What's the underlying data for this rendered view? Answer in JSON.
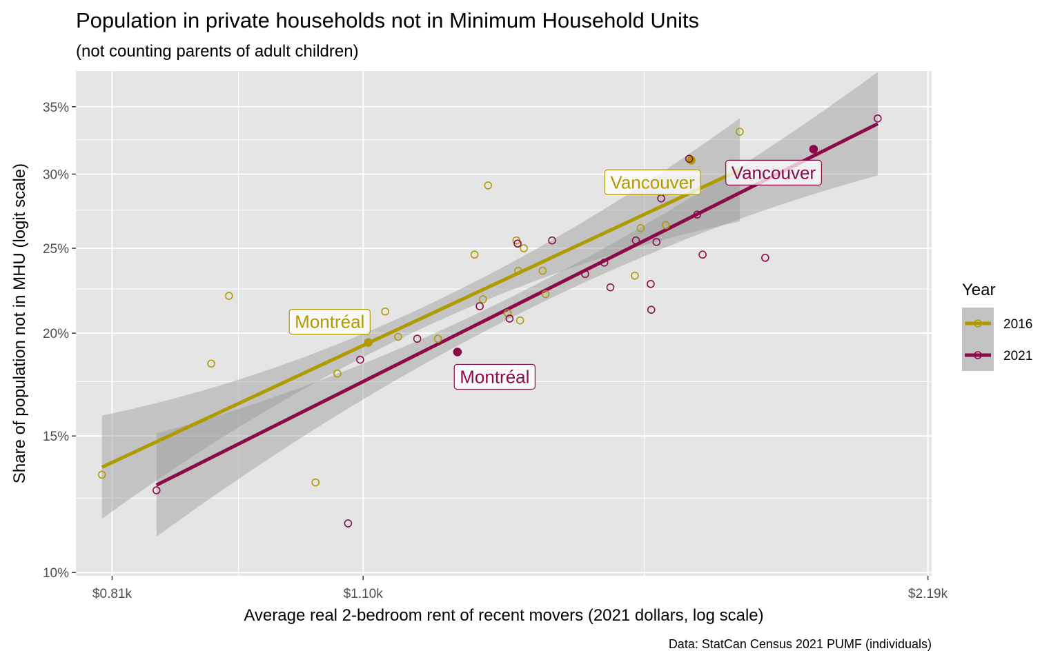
{
  "title": "Population in private households not in Minimum Household Units",
  "subtitle": "(not counting parents of adult children)",
  "caption": "Data: StatCan Census 2021 PUMF (individuals)",
  "colors": {
    "2016": "#b09a00",
    "2021": "#8b0a4a",
    "panel": "#e5e5e5",
    "grid": "#ffffff",
    "ribbon": "#999999"
  },
  "chart_data": {
    "type": "scatter",
    "title": "Population in private households not in Minimum Household Units",
    "subtitle": "(not counting parents of adult children)",
    "xlabel": "Average real 2-bedroom rent of recent movers (2021 dollars, log scale)",
    "ylabel": "Share of population not in MHU (logit scale)",
    "x_scale": "log",
    "y_scale": "logit",
    "xlim": [
      0.775,
      2.2
    ],
    "ylim": [
      0.099,
      0.378
    ],
    "x_ticks": [
      0.81,
      1.1,
      2.19
    ],
    "x_tick_labels": [
      "$0.81k",
      "$1.10k",
      "$2.19k"
    ],
    "x_minor_ticks": [
      0.945,
      1.55
    ],
    "y_ticks": [
      0.1,
      0.15,
      0.2,
      0.25,
      0.3,
      0.35
    ],
    "y_tick_labels": [
      "10%",
      "15%",
      "20%",
      "25%",
      "30%",
      "35%"
    ],
    "y_minor_ticks": [
      0.125,
      0.175,
      0.225,
      0.275,
      0.325
    ],
    "grid": true,
    "legend": {
      "title": "Year",
      "position": "right",
      "entries": [
        "2016",
        "2021"
      ]
    },
    "series": [
      {
        "name": "2016",
        "points": [
          {
            "x": 0.8,
            "y": 0.134
          },
          {
            "x": 0.914,
            "y": 0.184
          },
          {
            "x": 0.934,
            "y": 0.221
          },
          {
            "x": 1.038,
            "y": 0.131
          },
          {
            "x": 1.066,
            "y": 0.179
          },
          {
            "x": 1.107,
            "y": 0.195
          },
          {
            "x": 1.13,
            "y": 0.212
          },
          {
            "x": 1.148,
            "y": 0.198
          },
          {
            "x": 1.205,
            "y": 0.197
          },
          {
            "x": 1.26,
            "y": 0.246
          },
          {
            "x": 1.281,
            "y": 0.292
          },
          {
            "x": 1.273,
            "y": 0.219
          },
          {
            "x": 1.312,
            "y": 0.211
          },
          {
            "x": 1.326,
            "y": 0.255
          },
          {
            "x": 1.329,
            "y": 0.236
          },
          {
            "x": 1.332,
            "y": 0.207
          },
          {
            "x": 1.338,
            "y": 0.25
          },
          {
            "x": 1.369,
            "y": 0.236
          },
          {
            "x": 1.374,
            "y": 0.222
          },
          {
            "x": 1.532,
            "y": 0.233
          },
          {
            "x": 1.543,
            "y": 0.263
          },
          {
            "x": 1.591,
            "y": 0.265
          },
          {
            "x": 1.641,
            "y": 0.31
          },
          {
            "x": 1.741,
            "y": 0.331
          }
        ],
        "fit": {
          "x": [
            0.8,
            1.741
          ],
          "y": [
            0.137,
            0.303
          ]
        },
        "labels": [
          {
            "text": "Montréal",
            "x": 1.107,
            "y": 0.195
          },
          {
            "text": "Vancouver",
            "x": 1.641,
            "y": 0.31
          }
        ]
      },
      {
        "name": "2021",
        "points": [
          {
            "x": 0.855,
            "y": 0.128
          },
          {
            "x": 1.08,
            "y": 0.116
          },
          {
            "x": 1.096,
            "y": 0.186
          },
          {
            "x": 1.175,
            "y": 0.197
          },
          {
            "x": 1.234,
            "y": 0.19
          },
          {
            "x": 1.268,
            "y": 0.215
          },
          {
            "x": 1.315,
            "y": 0.208
          },
          {
            "x": 1.328,
            "y": 0.253
          },
          {
            "x": 1.385,
            "y": 0.255
          },
          {
            "x": 1.442,
            "y": 0.234
          },
          {
            "x": 1.476,
            "y": 0.241
          },
          {
            "x": 1.487,
            "y": 0.226
          },
          {
            "x": 1.534,
            "y": 0.255
          },
          {
            "x": 1.562,
            "y": 0.228
          },
          {
            "x": 1.563,
            "y": 0.213
          },
          {
            "x": 1.573,
            "y": 0.254
          },
          {
            "x": 1.582,
            "y": 0.283
          },
          {
            "x": 1.637,
            "y": 0.311
          },
          {
            "x": 1.653,
            "y": 0.272
          },
          {
            "x": 1.664,
            "y": 0.246
          },
          {
            "x": 1.796,
            "y": 0.244
          },
          {
            "x": 1.905,
            "y": 0.318
          },
          {
            "x": 2.06,
            "y": 0.341
          }
        ],
        "fit": {
          "x": [
            0.855,
            2.06
          ],
          "y": [
            0.13,
            0.337
          ]
        },
        "labels": [
          {
            "text": "Montréal",
            "x": 1.234,
            "y": 0.19
          },
          {
            "text": "Vancouver",
            "x": 1.905,
            "y": 0.318
          }
        ]
      }
    ]
  }
}
